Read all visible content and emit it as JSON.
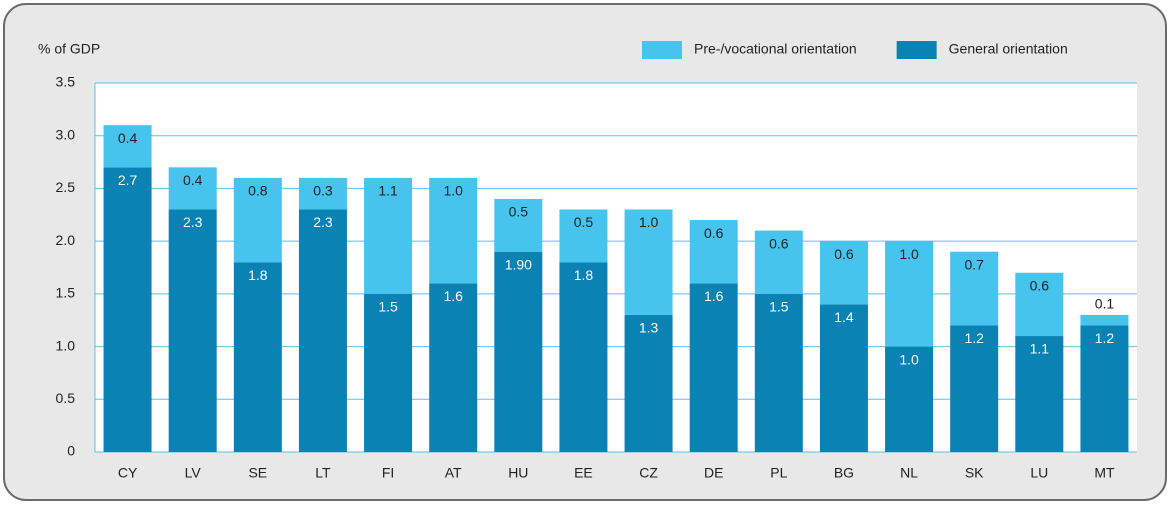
{
  "chart_data": {
    "type": "stacked-bar",
    "y_label": "% of GDP",
    "categories": [
      "CY",
      "LV",
      "SE",
      "LT",
      "FI",
      "AT",
      "HU",
      "EE",
      "CZ",
      "DE",
      "PL",
      "BG",
      "NL",
      "SK",
      "LU",
      "MT"
    ],
    "series": [
      {
        "name": "General orientation",
        "color": "#0a82b4",
        "values": [
          2.7,
          2.3,
          1.8,
          2.3,
          1.5,
          1.6,
          1.9,
          1.8,
          1.3,
          1.6,
          1.5,
          1.4,
          1.0,
          1.2,
          1.1,
          1.2
        ],
        "value_labels": [
          "2.7",
          "2.3",
          "1.8",
          "2.3",
          "1.5",
          "1.6",
          "1.90",
          "1.8",
          "1.3",
          "1.6",
          "1.5",
          "1.4",
          "1.0",
          "1.2",
          "1.1",
          "1.2"
        ]
      },
      {
        "name": "Pre-/vocational orientation",
        "color": "#46c4ee",
        "values": [
          0.4,
          0.4,
          0.8,
          0.3,
          1.1,
          1.0,
          0.5,
          0.5,
          1.0,
          0.6,
          0.6,
          0.6,
          1.0,
          0.7,
          0.6,
          0.1
        ],
        "value_labels": [
          "0.4",
          "0.4",
          "0.8",
          "0.3",
          "1.1",
          "1.0",
          "0.5",
          "0.5",
          "1.0",
          "0.6",
          "0.6",
          "0.6",
          "1.0",
          "0.7",
          "0.6",
          "0.1"
        ]
      }
    ],
    "ylim": [
      0,
      3.5
    ],
    "yticks": [
      0,
      0.5,
      {
        "value": 1,
        "label": "1.0"
      },
      1.5,
      {
        "value": 2,
        "label": "2.0"
      },
      2.5,
      {
        "value": 3,
        "label": "3.0"
      },
      3.5
    ],
    "grid": true,
    "legend": "top-right"
  }
}
